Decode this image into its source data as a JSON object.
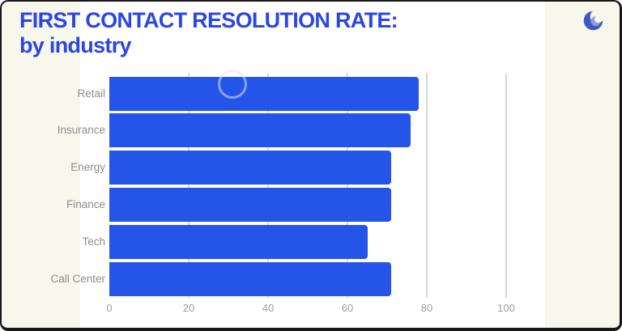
{
  "header": {
    "title_line1": "FIRST CONTACT RESOLUTION RATE:",
    "title_line2": "by industry"
  },
  "logo": {
    "name": "wave-swirl-logo"
  },
  "chart_data": {
    "type": "bar",
    "orientation": "horizontal",
    "title": "FIRST CONTACT RESOLUTION RATE: by industry",
    "categories": [
      "Retail",
      "Insurance",
      "Energy",
      "Finance",
      "Tech",
      "Call Center"
    ],
    "values": [
      78,
      76,
      71,
      71,
      65,
      71
    ],
    "xlabel": "",
    "ylabel": "",
    "xlim": [
      0,
      100
    ],
    "x_ticks": [
      0,
      20,
      40,
      60,
      80,
      100
    ],
    "grid": true,
    "legend": false,
    "bar_color": "#2454e8"
  },
  "colors": {
    "title_blue": "#2b46e5",
    "bar_blue": "#2454e8",
    "card_ivory": "#f8f7ec",
    "panel_white": "#ffffff",
    "gridline_gray": "#d9d9d9",
    "tick_label_gray": "#9e9e9e",
    "category_label_gray": "#8c8c8c",
    "border_black": "#171717",
    "logo_blue_dark": "#3f57c6",
    "logo_blue_light": "#8b9cdb"
  }
}
